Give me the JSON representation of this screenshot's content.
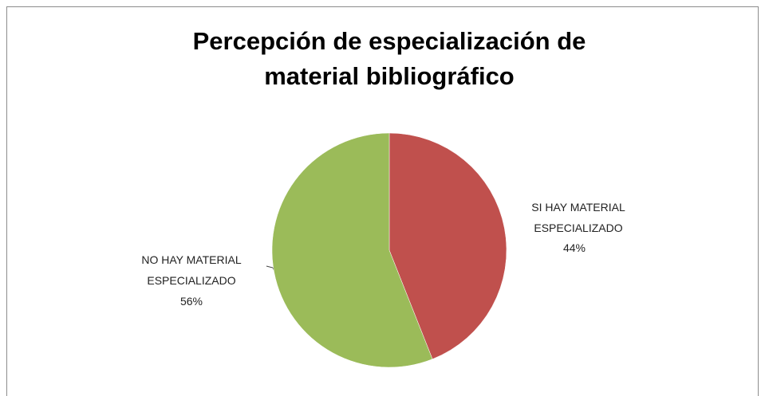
{
  "chart_data": {
    "type": "pie",
    "title": "Percepción de especialización de material bibliográfico",
    "categories": [
      "SI  HAY MATERIAL ESPECIALIZADO",
      "NO HAY MATERIAL ESPECIALIZADO"
    ],
    "values": [
      44,
      56
    ],
    "value_labels": [
      "44%",
      "56%"
    ],
    "colors": [
      "#c0504d",
      "#9bbb59"
    ]
  }
}
